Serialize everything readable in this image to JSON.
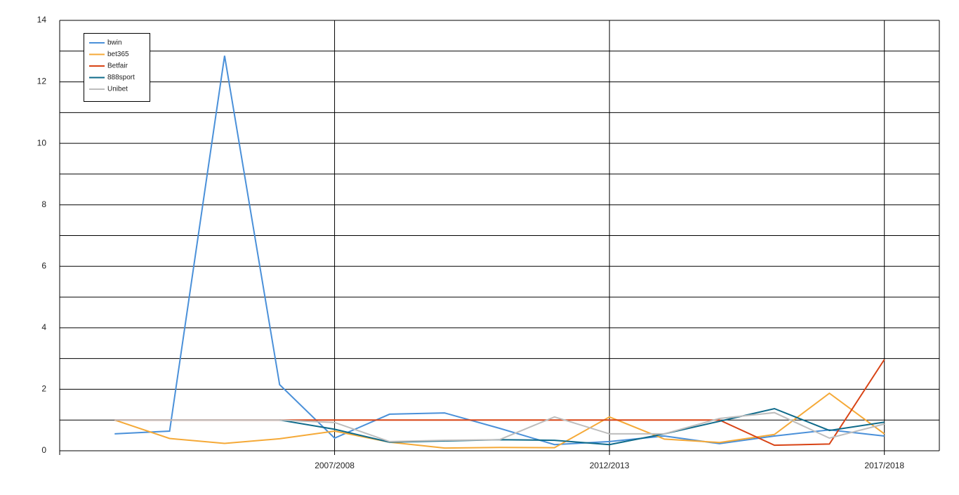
{
  "chart_data": {
    "type": "line",
    "categories": [
      null,
      null,
      null,
      null,
      "2007/2008",
      null,
      null,
      null,
      null,
      "2012/2013",
      null,
      null,
      null,
      null,
      "2017/2018"
    ],
    "series": [
      {
        "name": "bwin",
        "color": "#4a90d9",
        "values": [
          0.55,
          0.64,
          12.85,
          2.15,
          0.41,
          1.19,
          1.23,
          0.73,
          0.2,
          0.3,
          0.48,
          0.23,
          0.48,
          0.68,
          0.48
        ]
      },
      {
        "name": "bet365",
        "color": "#f5a937",
        "values": [
          1.0,
          0.4,
          0.24,
          0.39,
          0.64,
          0.28,
          0.09,
          0.11,
          0.1,
          1.1,
          0.38,
          0.27,
          0.53,
          1.87,
          0.55
        ]
      },
      {
        "name": "Betfair",
        "color": "#d84315",
        "values": [
          1.0,
          1.0,
          1.0,
          1.0,
          1.0,
          1.0,
          1.0,
          1.0,
          1.0,
          1.0,
          1.0,
          1.0,
          0.18,
          0.22,
          2.97
        ]
      },
      {
        "name": "888sport",
        "color": "#0e6a8a",
        "values": [
          null,
          null,
          null,
          1.0,
          0.7,
          0.28,
          0.32,
          0.36,
          0.34,
          0.2,
          0.55,
          0.96,
          1.37,
          0.66,
          0.93
        ]
      },
      {
        "name": "Unibet",
        "color": "#bdbdbd",
        "values": [
          1.0,
          1.0,
          1.0,
          1.0,
          0.92,
          0.3,
          0.34,
          0.36,
          1.1,
          0.55,
          0.55,
          1.05,
          1.24,
          0.41,
          0.87
        ]
      }
    ],
    "ylim": [
      0,
      14
    ],
    "yticks": [
      0,
      2,
      4,
      6,
      8,
      10,
      12,
      14
    ],
    "yminorgrid": [
      1,
      3,
      5,
      7,
      9,
      11,
      13
    ],
    "grid": true,
    "legend": "top-left"
  }
}
